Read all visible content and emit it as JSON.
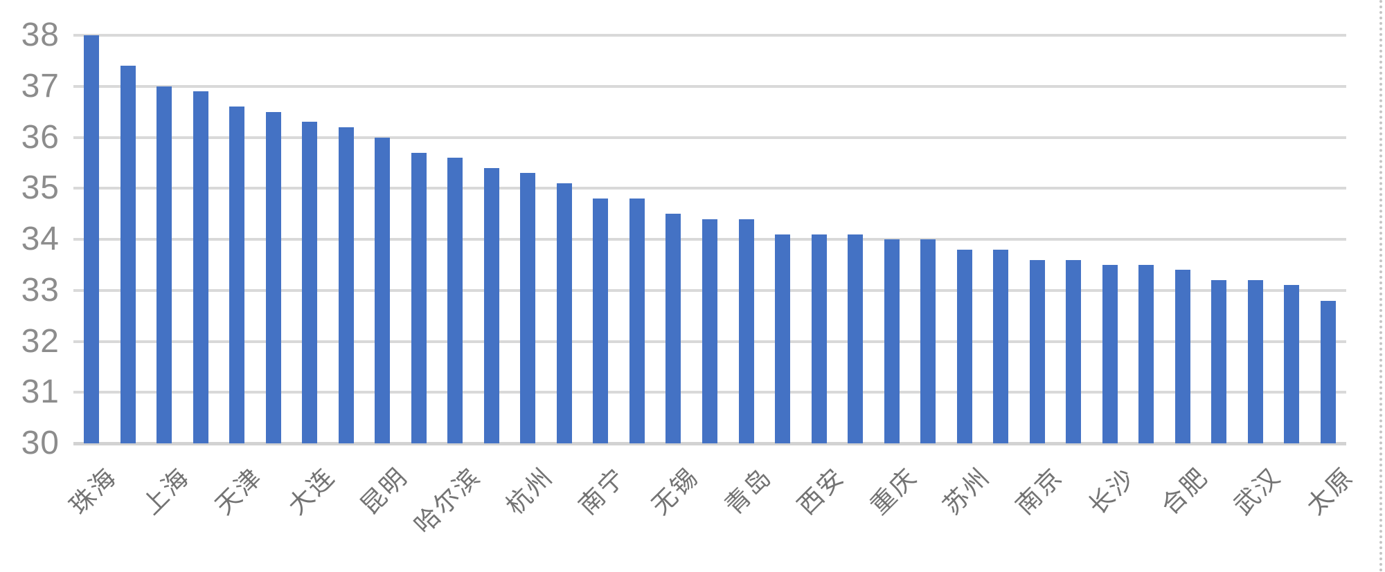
{
  "chart_data": {
    "type": "bar",
    "title": "",
    "xlabel": "",
    "ylabel": "",
    "categories": [
      "珠海",
      "",
      "上海",
      "",
      "天津",
      "",
      "大连",
      "",
      "昆明",
      "",
      "哈尔滨",
      "",
      "杭州",
      "",
      "南宁",
      "",
      "无锡",
      "",
      "青岛",
      "",
      "西安",
      "",
      "重庆",
      "",
      "苏州",
      "",
      "南京",
      "",
      "长沙",
      "",
      "合肥",
      "",
      "武汉",
      "",
      "太原"
    ],
    "values": [
      38.0,
      37.4,
      37.0,
      36.9,
      36.6,
      36.5,
      36.3,
      36.2,
      36.0,
      35.7,
      35.6,
      35.4,
      35.3,
      35.1,
      34.8,
      34.8,
      34.5,
      34.4,
      34.4,
      34.1,
      34.1,
      34.1,
      34.0,
      34.0,
      33.8,
      33.8,
      33.6,
      33.6,
      33.5,
      33.5,
      33.4,
      33.2,
      33.2,
      33.1,
      32.8
    ],
    "yticks": [
      30,
      31,
      32,
      33,
      34,
      35,
      36,
      37,
      38
    ],
    "ylim": [
      30,
      38
    ],
    "grid": true,
    "legend": false,
    "label_interval": 2,
    "bar_color": "#4472c4",
    "gridline_color": "#d9d9d9",
    "y_label_color": "#8c8c8c",
    "x_label_color": "#737373"
  }
}
